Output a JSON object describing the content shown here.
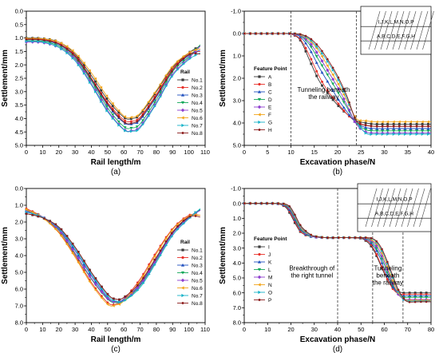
{
  "chart_data": [
    {
      "type": "line",
      "panel_label": "(a)",
      "xlabel": "Rail length/m",
      "ylabel": "Settlement/mm",
      "xlim": [
        0,
        110
      ],
      "ylim": [
        0.0,
        5.0
      ],
      "y_inverted": true,
      "xticks": [
        "0",
        "10",
        "20",
        "30",
        "40",
        "50",
        "60",
        "70",
        "80",
        "90",
        "100",
        "110"
      ],
      "yticks": [
        "0.0",
        "0.5",
        "1.0",
        "1.5",
        "2.0",
        "2.5",
        "3.0",
        "3.5",
        "4.0",
        "4.5",
        "5.0"
      ],
      "legend_title": "Rail",
      "legend_position": "right",
      "x": [
        0,
        10,
        20,
        30,
        40,
        50,
        60,
        65,
        70,
        80,
        90,
        100,
        107
      ],
      "series": [
        {
          "name": "No.1",
          "values": [
            1.0,
            1.02,
            1.15,
            1.6,
            2.4,
            3.3,
            3.95,
            4.0,
            3.85,
            3.0,
            2.1,
            1.55,
            1.3
          ]
        },
        {
          "name": "No.2",
          "values": [
            1.03,
            1.05,
            1.2,
            1.65,
            2.5,
            3.4,
            4.05,
            4.1,
            3.95,
            3.1,
            2.15,
            1.6,
            1.5
          ]
        },
        {
          "name": "No.3",
          "values": [
            1.06,
            1.08,
            1.25,
            1.7,
            2.55,
            3.5,
            4.15,
            4.2,
            4.05,
            3.2,
            2.2,
            1.65,
            1.45
          ]
        },
        {
          "name": "No.4",
          "values": [
            1.1,
            1.12,
            1.3,
            1.75,
            2.6,
            3.6,
            4.3,
            4.35,
            4.2,
            3.3,
            2.25,
            1.7,
            1.25
          ]
        },
        {
          "name": "No.5",
          "values": [
            1.15,
            1.17,
            1.35,
            1.8,
            2.7,
            3.7,
            4.4,
            4.45,
            4.3,
            3.4,
            2.35,
            1.75,
            1.3
          ]
        },
        {
          "name": "No.6",
          "values": [
            1.02,
            1.03,
            1.15,
            1.55,
            2.3,
            3.2,
            3.9,
            3.95,
            3.8,
            2.95,
            2.05,
            1.55,
            1.4
          ]
        },
        {
          "name": "No.7",
          "values": [
            1.12,
            1.15,
            1.35,
            1.85,
            2.75,
            3.75,
            4.42,
            4.47,
            4.35,
            3.45,
            2.4,
            1.8,
            1.55
          ]
        },
        {
          "name": "No.8",
          "values": [
            1.05,
            1.07,
            1.22,
            1.68,
            2.52,
            3.45,
            4.12,
            4.17,
            4.0,
            3.15,
            2.2,
            1.62,
            1.6
          ]
        }
      ]
    },
    {
      "type": "line",
      "panel_label": "(b)",
      "xlabel": "Excavation phase/N",
      "ylabel": "Settlement/mm",
      "xlim": [
        0,
        40
      ],
      "ylim": [
        -1.0,
        5.0
      ],
      "y_inverted": true,
      "xticks": [
        "0",
        "5",
        "10",
        "15",
        "20",
        "25",
        "30",
        "35",
        "40"
      ],
      "yticks": [
        "-1.0",
        "0.0",
        "1.0",
        "2.0",
        "3.0",
        "4.0",
        "5.0"
      ],
      "legend_title": "Feature Point",
      "legend_position": "left",
      "annotation": "Tunneling beneath the railway",
      "inset_top": "I,J,K,L,M,N,O,P",
      "inset_bottom": "A,B,C,D,E,F,G,H",
      "x": [
        0,
        4,
        8,
        10,
        12,
        14,
        16,
        18,
        20,
        22,
        24,
        26,
        28,
        32,
        36,
        40
      ],
      "series": [
        {
          "name": "A",
          "values": [
            0,
            0,
            0,
            0.02,
            0.3,
            1.2,
            2.1,
            2.7,
            3.2,
            3.6,
            3.9,
            4.0,
            4.05,
            4.05,
            4.05,
            4.05
          ]
        },
        {
          "name": "B",
          "values": [
            0,
            0,
            0,
            0.02,
            0.25,
            1.0,
            1.9,
            2.6,
            3.1,
            3.6,
            3.95,
            4.1,
            4.15,
            4.15,
            4.15,
            4.15
          ]
        },
        {
          "name": "C",
          "values": [
            0,
            0,
            0,
            0.01,
            0.15,
            0.7,
            1.5,
            2.2,
            2.9,
            3.5,
            4.0,
            4.2,
            4.25,
            4.25,
            4.25,
            4.25
          ]
        },
        {
          "name": "D",
          "values": [
            0,
            0,
            0,
            0.01,
            0.1,
            0.5,
            1.2,
            1.9,
            2.6,
            3.3,
            4.0,
            4.3,
            4.35,
            4.35,
            4.35,
            4.35
          ]
        },
        {
          "name": "E",
          "values": [
            0,
            0,
            0,
            0.01,
            0.08,
            0.4,
            1.0,
            1.7,
            2.4,
            3.2,
            4.05,
            4.4,
            4.45,
            4.45,
            4.45,
            4.45
          ]
        },
        {
          "name": "F",
          "values": [
            0,
            0,
            0,
            0.0,
            0.05,
            0.3,
            0.8,
            1.5,
            2.2,
            3.0,
            3.8,
            3.9,
            3.95,
            3.95,
            3.95,
            3.95
          ]
        },
        {
          "name": "G",
          "values": [
            0,
            0,
            0,
            0.0,
            0.04,
            0.25,
            0.7,
            1.3,
            2.0,
            2.9,
            3.9,
            4.45,
            4.5,
            4.5,
            4.5,
            4.5
          ]
        },
        {
          "name": "H",
          "values": [
            0,
            0,
            0,
            0.0,
            0.03,
            0.2,
            0.6,
            1.2,
            1.9,
            2.8,
            3.9,
            4.1,
            4.15,
            4.15,
            4.15,
            4.15
          ]
        }
      ]
    },
    {
      "type": "line",
      "panel_label": "(c)",
      "xlabel": "Rail length/m",
      "ylabel": "Settlement/mm",
      "xlim": [
        0,
        110
      ],
      "ylim": [
        0.0,
        8.0
      ],
      "y_inverted": true,
      "xticks": [
        "0",
        "10",
        "20",
        "30",
        "40",
        "50",
        "60",
        "70",
        "80",
        "90",
        "100",
        "110"
      ],
      "yticks": [
        "0.0",
        "1.0",
        "2.0",
        "3.0",
        "4.0",
        "5.0",
        "6.0",
        "7.0",
        "8.0"
      ],
      "legend_title": "Rail",
      "legend_position": "right",
      "x": [
        0,
        10,
        20,
        30,
        40,
        50,
        55,
        60,
        70,
        80,
        90,
        100,
        107
      ],
      "series": [
        {
          "name": "No.1",
          "values": [
            1.5,
            1.75,
            2.3,
            3.5,
            5.0,
            6.3,
            6.6,
            6.5,
            5.6,
            4.1,
            2.6,
            1.7,
            1.3
          ]
        },
        {
          "name": "No.2",
          "values": [
            1.2,
            1.7,
            2.6,
            4.0,
            5.6,
            6.8,
            6.9,
            6.6,
            5.4,
            3.8,
            2.4,
            1.6,
            1.6
          ]
        },
        {
          "name": "No.3",
          "values": [
            1.4,
            1.72,
            2.4,
            3.7,
            5.2,
            6.5,
            6.75,
            6.6,
            5.7,
            4.2,
            2.65,
            1.75,
            1.3
          ]
        },
        {
          "name": "No.4",
          "values": [
            1.3,
            1.7,
            2.5,
            3.9,
            5.4,
            6.6,
            6.8,
            6.7,
            5.8,
            4.3,
            2.7,
            1.75,
            1.25
          ]
        },
        {
          "name": "No.5",
          "values": [
            1.35,
            1.7,
            2.45,
            3.85,
            5.35,
            6.55,
            6.75,
            6.65,
            5.75,
            4.25,
            2.7,
            1.75,
            1.3
          ]
        },
        {
          "name": "No.6",
          "values": [
            1.25,
            1.75,
            2.65,
            4.1,
            5.7,
            6.9,
            6.95,
            6.7,
            5.5,
            3.9,
            2.45,
            1.65,
            1.6
          ]
        },
        {
          "name": "No.7",
          "values": [
            1.4,
            1.72,
            2.35,
            3.6,
            5.1,
            6.4,
            6.7,
            6.7,
            5.9,
            4.4,
            2.8,
            1.8,
            1.2
          ]
        },
        {
          "name": "No.8",
          "values": [
            1.5,
            1.75,
            2.3,
            3.5,
            5.0,
            6.3,
            6.6,
            6.5,
            5.6,
            4.1,
            2.6,
            1.7,
            1.7
          ]
        }
      ]
    },
    {
      "type": "line",
      "panel_label": "(d)",
      "xlabel": "Excavation phase/N",
      "ylabel": "Settlement/mm",
      "xlim": [
        0,
        80
      ],
      "ylim": [
        -1.0,
        8.0
      ],
      "y_inverted": true,
      "xticks": [
        "0",
        "10",
        "20",
        "30",
        "40",
        "50",
        "60",
        "70",
        "80"
      ],
      "yticks": [
        "-1.0",
        "0.0",
        "1.0",
        "2.0",
        "3.0",
        "4.0",
        "5.0",
        "6.0",
        "7.0",
        "8.0"
      ],
      "legend_title": "Feature Point",
      "legend_position": "left",
      "annotation_1": "Breakthrough of the right tunnel",
      "annotation_2": "Tunneling beneath the railway",
      "inset_top": "I,J,K,L,M,N,O,P",
      "inset_bottom": "A,B,C,D,E,F,G,H",
      "x": [
        0,
        10,
        15,
        18,
        20,
        22,
        24,
        26,
        28,
        30,
        35,
        40,
        45,
        50,
        52,
        54,
        56,
        58,
        60,
        62,
        64,
        66,
        68,
        70,
        75,
        80
      ],
      "series": [
        {
          "name": "I",
          "values": [
            0,
            0,
            0.05,
            0.3,
            0.8,
            1.4,
            1.9,
            2.1,
            2.2,
            2.25,
            2.3,
            2.3,
            2.3,
            2.35,
            2.5,
            2.8,
            3.3,
            4.0,
            4.7,
            5.3,
            5.7,
            5.9,
            6.0,
            6.0,
            6.0,
            6.0
          ]
        },
        {
          "name": "J",
          "values": [
            0,
            0,
            0.04,
            0.25,
            0.7,
            1.3,
            1.85,
            2.1,
            2.2,
            2.25,
            2.3,
            2.3,
            2.3,
            2.32,
            2.45,
            2.7,
            3.2,
            3.9,
            4.6,
            5.3,
            5.8,
            6.05,
            6.1,
            6.1,
            6.1,
            6.1
          ]
        },
        {
          "name": "K",
          "values": [
            0,
            0,
            0.03,
            0.2,
            0.6,
            1.2,
            1.75,
            2.05,
            2.2,
            2.25,
            2.3,
            2.3,
            2.3,
            2.3,
            2.4,
            2.6,
            3.0,
            3.6,
            4.4,
            5.1,
            5.7,
            6.05,
            6.2,
            6.2,
            6.2,
            6.2
          ]
        },
        {
          "name": "L",
          "values": [
            0,
            0,
            0.02,
            0.15,
            0.5,
            1.1,
            1.7,
            2.0,
            2.2,
            2.25,
            2.3,
            2.3,
            2.3,
            2.3,
            2.35,
            2.5,
            2.85,
            3.4,
            4.1,
            4.9,
            5.6,
            6.1,
            6.3,
            6.3,
            6.3,
            6.3
          ]
        },
        {
          "name": "M",
          "values": [
            0,
            0,
            0.02,
            0.12,
            0.45,
            1.0,
            1.6,
            1.95,
            2.15,
            2.25,
            2.3,
            2.3,
            2.3,
            2.3,
            2.32,
            2.45,
            2.7,
            3.2,
            3.9,
            4.7,
            5.5,
            6.1,
            6.4,
            6.45,
            6.45,
            6.45
          ]
        },
        {
          "name": "N",
          "values": [
            0,
            0,
            0.01,
            0.1,
            0.4,
            0.95,
            1.55,
            1.9,
            2.1,
            2.2,
            2.3,
            2.3,
            2.3,
            2.3,
            2.3,
            2.4,
            2.6,
            3.0,
            3.7,
            4.5,
            5.3,
            6.0,
            6.4,
            6.5,
            6.5,
            6.5
          ]
        },
        {
          "name": "O",
          "values": [
            0,
            0,
            0.01,
            0.08,
            0.35,
            0.9,
            1.5,
            1.85,
            2.1,
            2.2,
            2.3,
            2.3,
            2.3,
            2.3,
            2.3,
            2.35,
            2.5,
            2.9,
            3.5,
            4.3,
            5.1,
            5.9,
            6.4,
            6.55,
            6.55,
            6.55
          ]
        },
        {
          "name": "P",
          "values": [
            0,
            0,
            0.01,
            0.06,
            0.3,
            0.85,
            1.45,
            1.8,
            2.05,
            2.2,
            2.3,
            2.3,
            2.3,
            2.3,
            2.3,
            2.32,
            2.45,
            2.8,
            3.4,
            4.2,
            5.0,
            5.8,
            6.3,
            6.6,
            6.6,
            6.6
          ]
        }
      ]
    }
  ],
  "colors": [
    "#3a3a3a",
    "#e8302a",
    "#1f4fbf",
    "#14a85a",
    "#8e3fcf",
    "#f2a51a",
    "#17b3c9",
    "#8b1c1c"
  ],
  "marker_shapes": [
    "square",
    "circle",
    "triangle-up",
    "triangle-down",
    "diamond",
    "triangle-left",
    "triangle-right",
    "hexagon"
  ]
}
